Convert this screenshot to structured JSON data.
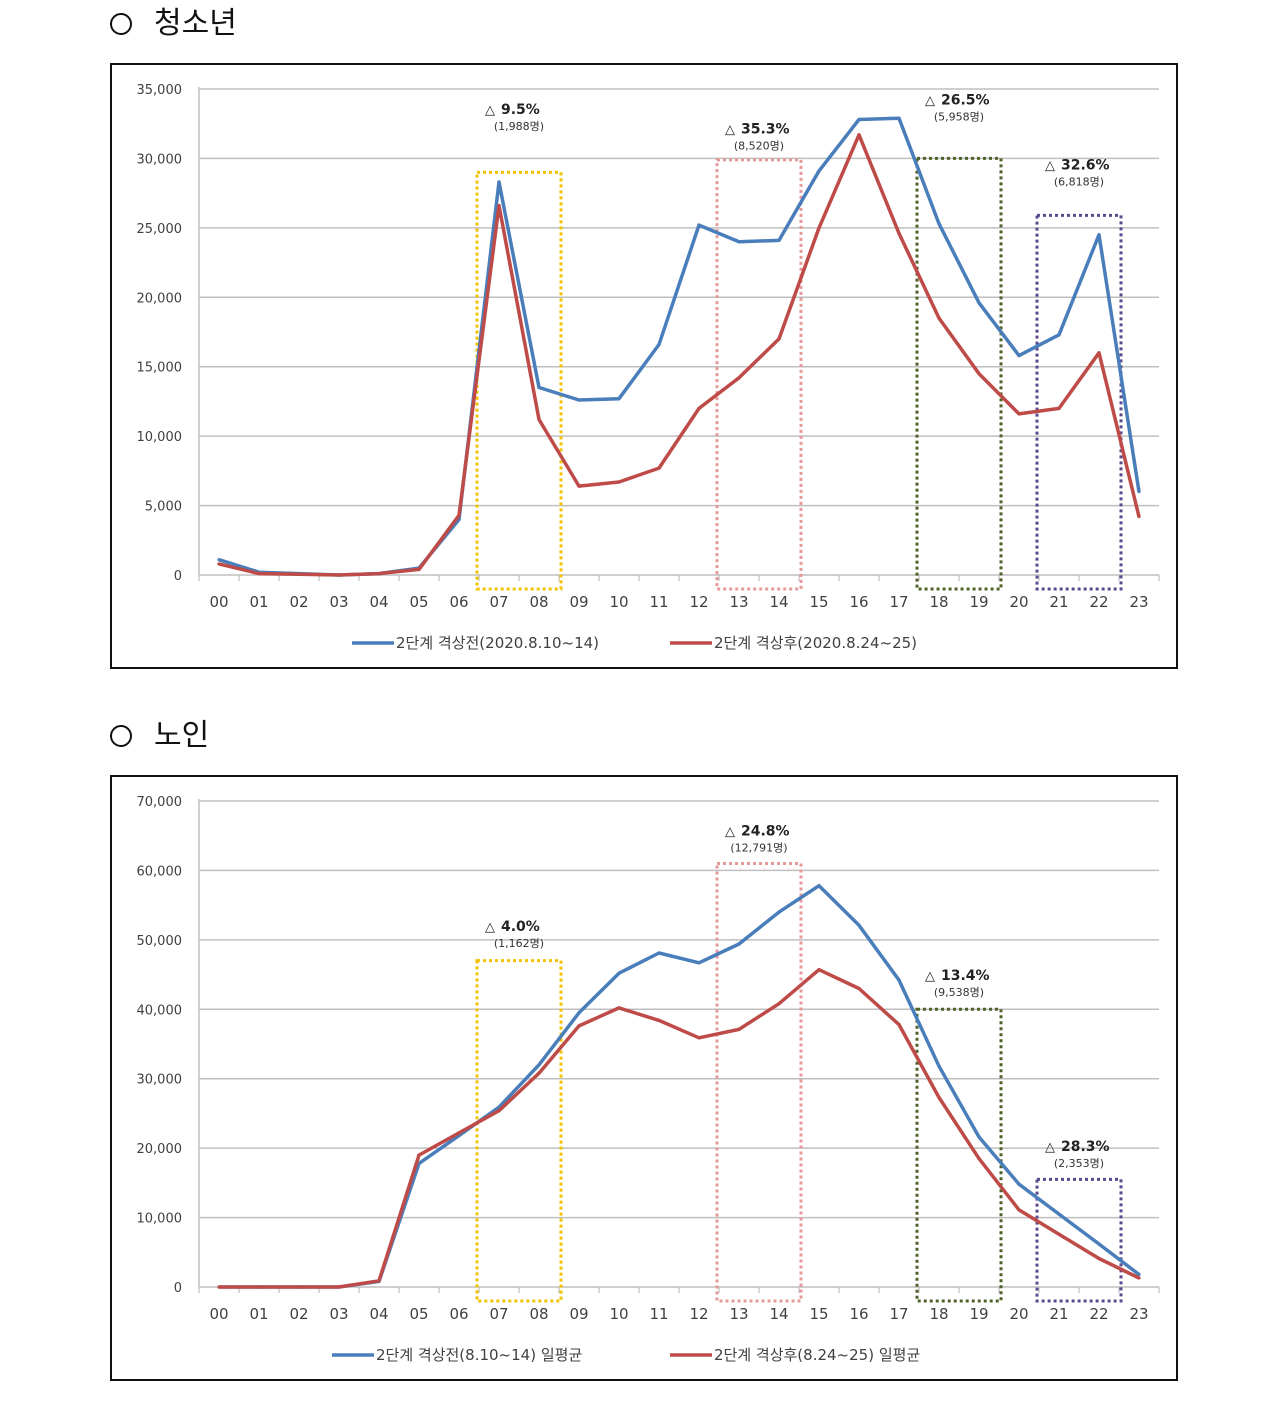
{
  "sections": [
    {
      "heading": "청소년"
    },
    {
      "heading": "노인"
    }
  ],
  "chart_data": [
    {
      "type": "line",
      "title": "",
      "xlabel": "",
      "ylabel": "",
      "x": [
        "00",
        "01",
        "02",
        "03",
        "04",
        "05",
        "06",
        "07",
        "08",
        "09",
        "10",
        "11",
        "12",
        "13",
        "14",
        "15",
        "16",
        "17",
        "18",
        "19",
        "20",
        "21",
        "22",
        "23"
      ],
      "ylim": [
        0,
        35000
      ],
      "yticks": [
        0,
        5000,
        10000,
        15000,
        20000,
        25000,
        30000,
        35000
      ],
      "ytick_labels": [
        "0",
        "5,000",
        "10,000",
        "15,000",
        "20,000",
        "25,000",
        "30,000",
        "35,000"
      ],
      "grid": true,
      "legend_position": "bottom",
      "series": [
        {
          "name": "2단계 격상전(2020.8.10~14)",
          "color": "#4a7ebb",
          "values": [
            1100,
            200,
            100,
            0,
            100,
            500,
            4000,
            28300,
            13500,
            12600,
            12700,
            16600,
            25200,
            24000,
            24100,
            29100,
            32800,
            32900,
            25300,
            19600,
            15800,
            17300,
            24500,
            6000
          ]
        },
        {
          "name": "2단계 격상후(2020.8.24~25)",
          "color": "#be4b48",
          "values": [
            800,
            100,
            50,
            0,
            100,
            400,
            4300,
            26600,
            11200,
            6400,
            6700,
            7700,
            12000,
            14200,
            17000,
            25000,
            31700,
            24600,
            18500,
            14500,
            11600,
            12000,
            16000,
            4200
          ]
        }
      ],
      "annotations": [
        {
          "from": "07",
          "to": "08",
          "color": "#f2c200",
          "top_value": 29000,
          "pct": "9.5%",
          "count": "(1,988명)",
          "label_value": 33200
        },
        {
          "from": "13",
          "to": "14",
          "color": "#e59a9a",
          "top_value": 29900,
          "pct": "35.3%",
          "count": "(8,520명)",
          "label_value": 31800
        },
        {
          "from": "18",
          "to": "19",
          "color": "#4f6228",
          "top_value": 30000,
          "pct": "26.5%",
          "count": "(5,958명)",
          "label_value": 33900
        },
        {
          "from": "21",
          "to": "22",
          "color": "#5b4a8c",
          "top_value": 25900,
          "pct": "32.6%",
          "count": "(6,818명)",
          "label_value": 29200
        }
      ]
    },
    {
      "type": "line",
      "title": "",
      "xlabel": "",
      "ylabel": "",
      "x": [
        "00",
        "01",
        "02",
        "03",
        "04",
        "05",
        "06",
        "07",
        "08",
        "09",
        "10",
        "11",
        "12",
        "13",
        "14",
        "15",
        "16",
        "17",
        "18",
        "19",
        "20",
        "21",
        "22",
        "23"
      ],
      "ylim": [
        0,
        70000
      ],
      "yticks": [
        0,
        10000,
        20000,
        30000,
        40000,
        50000,
        60000,
        70000
      ],
      "ytick_labels": [
        "0",
        "10,000",
        "20,000",
        "30,000",
        "40,000",
        "50,000",
        "60,000",
        "70,000"
      ],
      "grid": true,
      "legend_position": "bottom",
      "series": [
        {
          "name": "2단계 격상전(8.10~14) 일평균",
          "color": "#4a7ebb",
          "values": [
            0,
            0,
            0,
            0,
            800,
            17800,
            21800,
            25900,
            32000,
            39500,
            45200,
            48100,
            46700,
            49400,
            54000,
            57800,
            52100,
            44200,
            31800,
            21600,
            14800,
            10500,
            6200,
            1800
          ]
        },
        {
          "name": "2단계 격상후(8.24~25) 일평균",
          "color": "#be4b48",
          "values": [
            0,
            0,
            0,
            0,
            900,
            19000,
            22200,
            25400,
            30800,
            37600,
            40200,
            38400,
            35900,
            37100,
            40800,
            45700,
            43000,
            37800,
            27300,
            18500,
            11100,
            7600,
            4100,
            1300
          ]
        }
      ],
      "annotations": [
        {
          "from": "07",
          "to": "08",
          "color": "#f2c200",
          "top_value": 47000,
          "pct": "4.0%",
          "count": "(1,162명)",
          "label_value": 51300
        },
        {
          "from": "13",
          "to": "14",
          "color": "#e59a9a",
          "top_value": 61000,
          "pct": "24.8%",
          "count": "(12,791명)",
          "label_value": 65000
        },
        {
          "from": "18",
          "to": "19",
          "color": "#4f6228",
          "top_value": 40000,
          "pct": "13.4%",
          "count": "(9,538명)",
          "label_value": 44200
        },
        {
          "from": "21",
          "to": "22",
          "color": "#5b4a8c",
          "top_value": 15500,
          "pct": "28.3%",
          "count": "(2,353명)",
          "label_value": 19600
        }
      ]
    }
  ]
}
